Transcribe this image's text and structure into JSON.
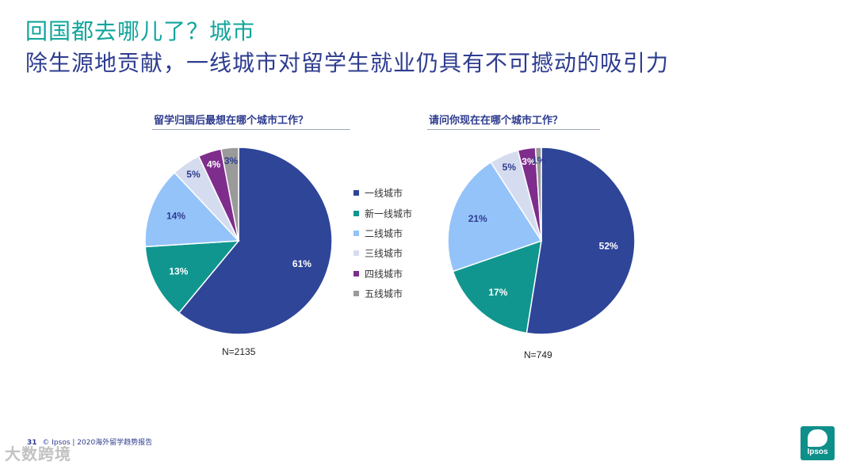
{
  "slide": {
    "title_line1": "回国都去哪儿了？城市",
    "title_line2": "除生源地贡献，一线城市对留学生就业仍具有不可撼动的吸引力",
    "footer_page": "31",
    "footer_text": "© Ipsos | 2020海外留学趋势报告",
    "watermark_text": "大数跨境",
    "logo_text": "Ipsos"
  },
  "legend": {
    "items": [
      "一线城市",
      "新一线城市",
      "二线城市",
      "三线城市",
      "四线城市",
      "五线城市"
    ]
  },
  "colors": [
    "#2e4598",
    "#10968f",
    "#94c3fa",
    "#d6dcf0",
    "#7e2d8c",
    "#9a9a9a"
  ],
  "chart_data": [
    {
      "type": "pie",
      "title": "留学归国后最想在哪个城市工作？",
      "categories": [
        "一线城市",
        "新一线城市",
        "二线城市",
        "三线城市",
        "四线城市",
        "五线城市"
      ],
      "values": [
        61,
        13,
        14,
        5,
        4,
        3
      ],
      "labels": [
        "61%",
        "13%",
        "14%",
        "5%",
        "4%",
        "3%"
      ],
      "n_label": "N=2135"
    },
    {
      "type": "pie",
      "title": "请问你现在在哪个城市工作？",
      "categories": [
        "一线城市",
        "新一线城市",
        "二线城市",
        "三线城市",
        "四线城市",
        "五线城市"
      ],
      "values": [
        52,
        17,
        21,
        5,
        3,
        1
      ],
      "labels": [
        "52%",
        "17%",
        "21%",
        "5%",
        "3%",
        "1%"
      ],
      "n_label": "N=749"
    }
  ]
}
